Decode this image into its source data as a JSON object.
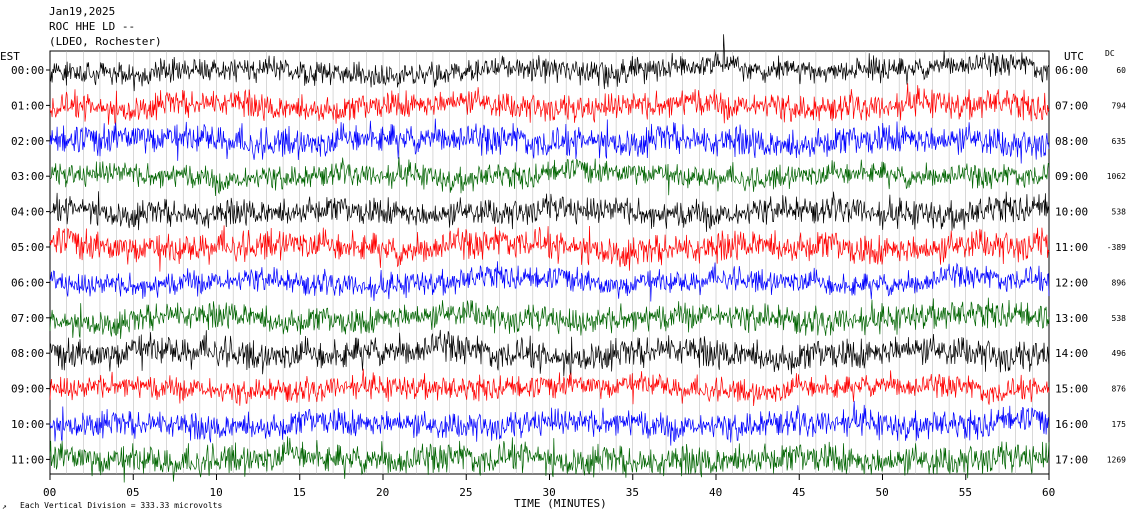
{
  "header": {
    "date": "Jan19,2025",
    "station": "ROC HHE LD --",
    "network": "(LDEO, Rochester)"
  },
  "footer": {
    "scale_symbol": "↗",
    "scale_note": "Each Vertical Division = 333.33 microvolts"
  },
  "chart_data": {
    "type": "line",
    "title": "",
    "xlabel": "TIME (MINUTES)",
    "ylabel": "",
    "xlim": [
      0,
      60
    ],
    "x_ticks": [
      "00",
      "05",
      "10",
      "15",
      "20",
      "25",
      "30",
      "35",
      "40",
      "45",
      "50",
      "55",
      "60"
    ],
    "left_timezone": "EST",
    "right_timezone": "UTC",
    "dc_header": "DC",
    "trace_colors": [
      "#000000",
      "#ff0000",
      "#0000ff",
      "#006400"
    ],
    "rows": [
      {
        "est": "00:00",
        "utc": "06:00",
        "dc": "60"
      },
      {
        "est": "01:00",
        "utc": "07:00",
        "dc": "794"
      },
      {
        "est": "02:00",
        "utc": "08:00",
        "dc": "635"
      },
      {
        "est": "03:00",
        "utc": "09:00",
        "dc": "1062"
      },
      {
        "est": "04:00",
        "utc": "10:00",
        "dc": "538"
      },
      {
        "est": "05:00",
        "utc": "11:00",
        "dc": "-389"
      },
      {
        "est": "06:00",
        "utc": "12:00",
        "dc": "896"
      },
      {
        "est": "07:00",
        "utc": "13:00",
        "dc": "538"
      },
      {
        "est": "08:00",
        "utc": "14:00",
        "dc": "496"
      },
      {
        "est": "09:00",
        "utc": "15:00",
        "dc": "876"
      },
      {
        "est": "10:00",
        "utc": "16:00",
        "dc": "175"
      },
      {
        "est": "11:00",
        "utc": "17:00",
        "dc": "1269"
      }
    ],
    "grid": true
  }
}
